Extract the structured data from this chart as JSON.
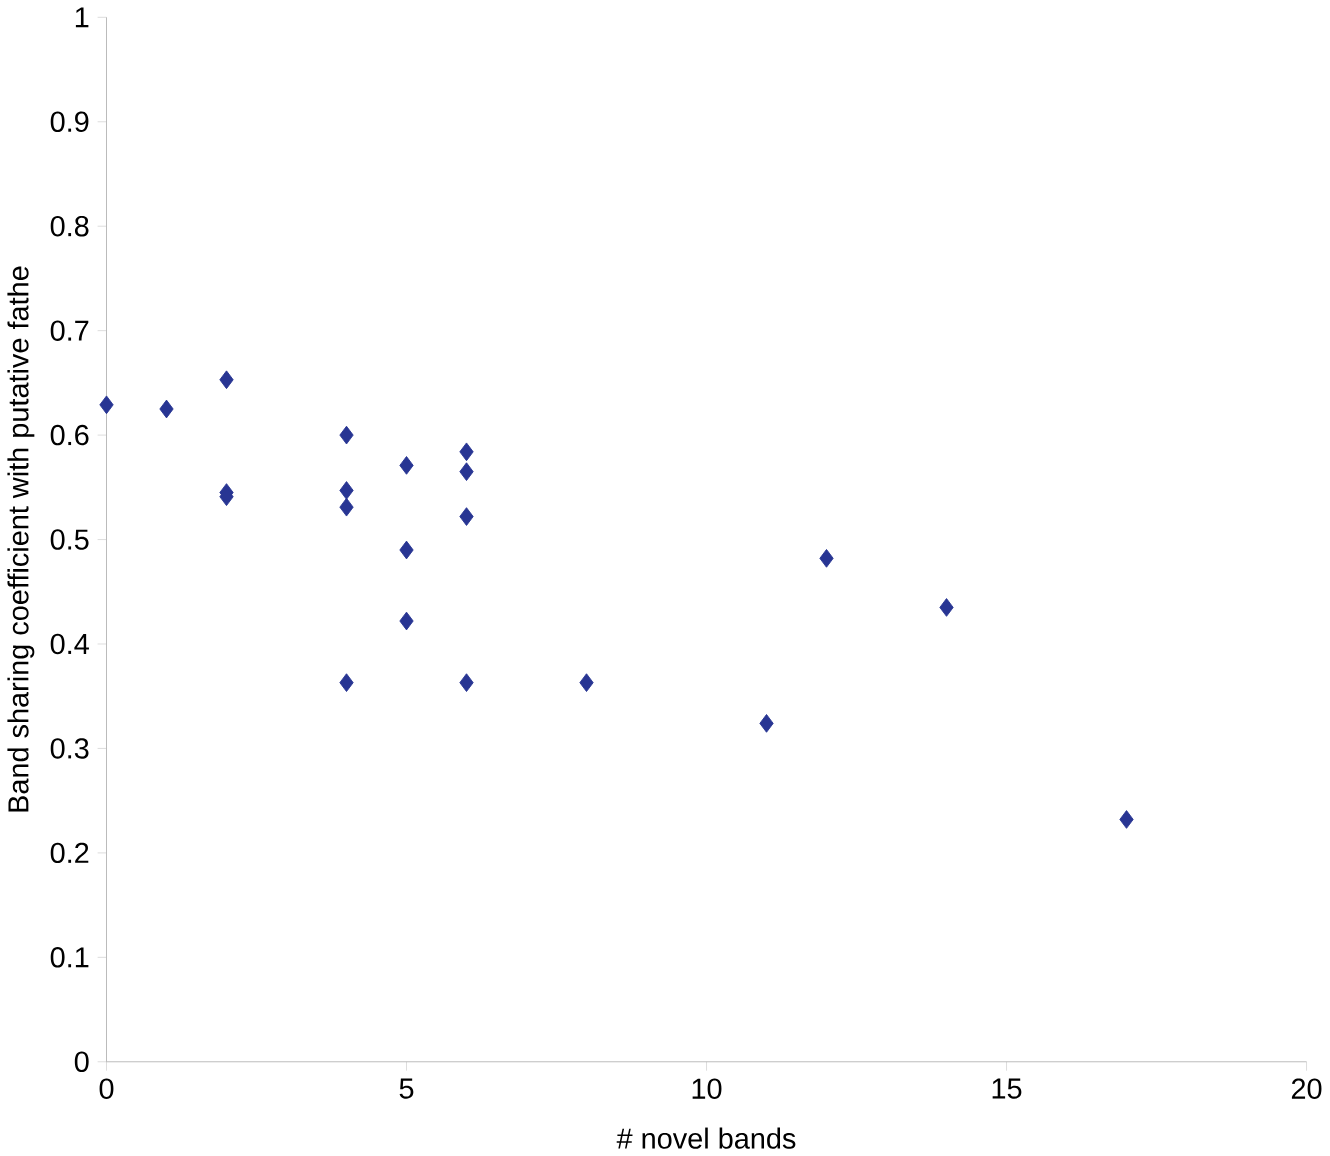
{
  "chart_data": {
    "type": "scatter",
    "xlabel": "# novel bands",
    "ylabel": "Band sharing coefficient with putative fathe",
    "x": [
      0,
      1,
      2,
      2,
      2,
      4,
      4,
      4,
      4,
      5,
      5,
      5,
      6,
      6,
      6,
      6,
      8,
      11,
      12,
      14,
      17
    ],
    "values": [
      0.629,
      0.625,
      0.653,
      0.545,
      0.541,
      0.6,
      0.547,
      0.531,
      0.363,
      0.571,
      0.49,
      0.422,
      0.584,
      0.565,
      0.522,
      0.363,
      0.363,
      0.324,
      0.482,
      0.435,
      0.232
    ],
    "color": "#283593",
    "marker": "diamond",
    "xlim": [
      0,
      20
    ],
    "xticks": [
      0,
      5,
      10,
      15,
      20
    ],
    "ylim": [
      0,
      1
    ],
    "yticks": [
      0,
      0.1,
      0.2,
      0.3,
      0.4,
      0.5,
      0.6,
      0.7,
      0.8,
      0.9,
      1
    ]
  }
}
